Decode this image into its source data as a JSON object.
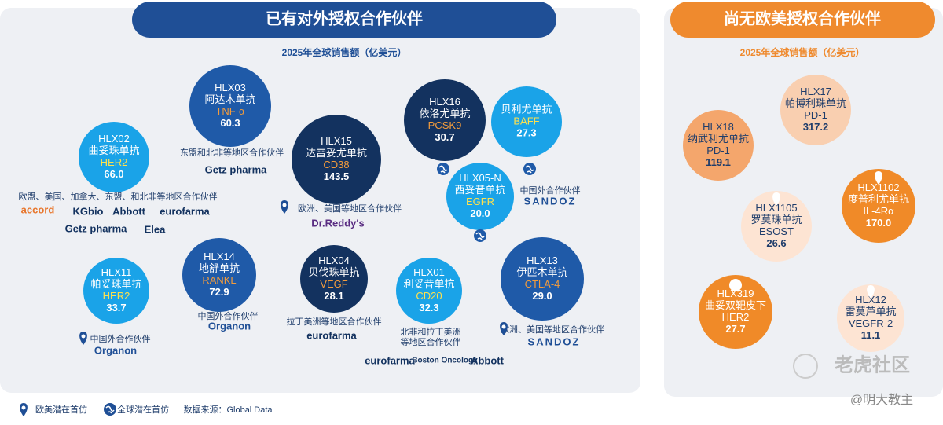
{
  "left_panel": {
    "title": "已有对外授权合作伙伴",
    "subtitle": "2025年全球销售额（亿美元）",
    "products": [
      {
        "code": "HLX02",
        "name": "曲妥珠单抗",
        "target": "HER2",
        "sales": "66.0"
      },
      {
        "code": "HLX03",
        "name": "阿达木单抗",
        "target": "TNF-α",
        "sales": "60.3"
      },
      {
        "code": "HLX15",
        "name": "达雷妥尤单抗",
        "target": "CD38",
        "sales": "143.5"
      },
      {
        "code": "HLX16",
        "name": "依洛尤单抗",
        "target": "PCSK9",
        "sales": "30.7"
      },
      {
        "name": "贝利尤单抗",
        "target": "BAFF",
        "sales": "27.3"
      },
      {
        "code": "HLX05-N",
        "name": "西妥昔单抗",
        "target": "EGFR",
        "sales": "20.0"
      },
      {
        "code": "HLX11",
        "name": "帕妥珠单抗",
        "target": "HER2",
        "sales": "33.7"
      },
      {
        "code": "HLX14",
        "name": "地舒单抗",
        "target": "RANKL",
        "sales": "72.9"
      },
      {
        "code": "HLX04",
        "name": "贝伐珠单抗",
        "target": "VEGF",
        "sales": "28.1"
      },
      {
        "code": "HLX01",
        "name": "利妥昔单抗",
        "target": "CD20",
        "sales": "32.3"
      },
      {
        "code": "HLX13",
        "name": "伊匹木单抗",
        "target": "CTLA-4",
        "sales": "29.0"
      }
    ],
    "partners": [
      {
        "lines": [
          "东盟和北非等地区合作伙伴"
        ],
        "logos": [
          "Getz pharma"
        ]
      },
      {
        "lines": [
          "欧盟、美国、加拿大、东盟、和北非等地区合作伙伴"
        ],
        "logos": [
          "accord",
          "KGbio",
          "Abbott",
          "eurofarma",
          "Getz pharma",
          "Elea"
        ]
      },
      {
        "lines": [
          "欧洲、美国等地区合作伙伴"
        ],
        "logos": [
          "Dr.Reddy's"
        ]
      },
      {
        "lines": [
          "中国外合作伙伴"
        ],
        "logos": [
          "SANDOZ"
        ]
      },
      {
        "lines": [
          "中国外合作伙伴"
        ],
        "logos": [
          "Organon"
        ]
      },
      {
        "lines": [
          "中国外合作伙伴"
        ],
        "logos": [
          "Organon"
        ]
      },
      {
        "lines": [
          "拉丁美洲等地区合作伙伴"
        ],
        "logos": [
          "eurofarma"
        ]
      },
      {
        "lines": [
          "北非和拉丁美洲",
          "等地区合作伙伴"
        ],
        "logos": [
          "eurofarma",
          "Boston Oncology",
          "Abbott"
        ]
      },
      {
        "lines": [
          "欧洲、美国等地区合作伙伴"
        ],
        "logos": [
          "SANDOZ"
        ]
      }
    ]
  },
  "right_panel": {
    "title": "尚无欧美授权合作伙伴",
    "subtitle": "2025年全球销售额（亿美元）",
    "products": [
      {
        "code": "HLX17",
        "name": "帕博利珠单抗",
        "target": "PD-1",
        "sales": "317.2"
      },
      {
        "code": "HLX18",
        "name": "纳武利尤单抗",
        "target": "PD-1",
        "sales": "119.1"
      },
      {
        "code": "HLX1102",
        "name": "度普利尤单抗",
        "target": "IL-4Rα",
        "sales": "170.0"
      },
      {
        "code": "HLX1105",
        "name": "罗莫珠单抗",
        "target": "ESOST",
        "sales": "26.6"
      },
      {
        "code": "HLX319",
        "name": "曲妥双靶皮下",
        "target": "HER2",
        "sales": "27.7"
      },
      {
        "code": "HLX12",
        "name": "雷莫芦单抗",
        "target": "VEGFR-2",
        "sales": "11.1"
      }
    ]
  },
  "legend": [
    "欧美潜在首仿",
    "全球潜在首仿"
  ],
  "source": "数据来源：Global Data",
  "watermark": [
    "老虎社区",
    "@明大教主"
  ]
}
